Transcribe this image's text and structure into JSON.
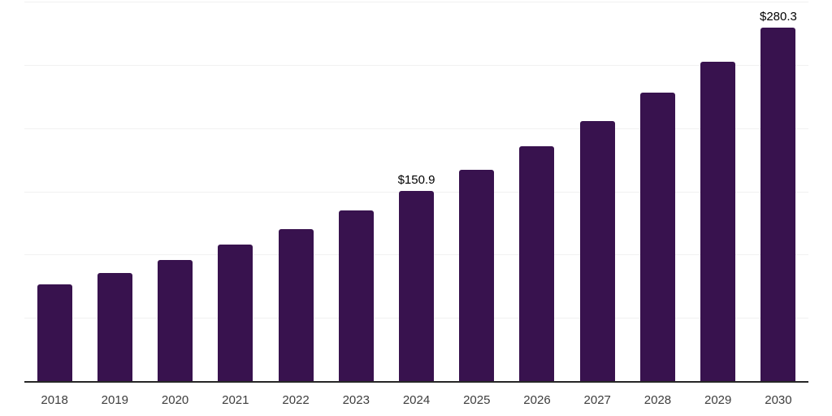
{
  "chart_data": {
    "type": "bar",
    "title": "",
    "xlabel": "",
    "ylabel": "",
    "categories": [
      "2018",
      "2019",
      "2020",
      "2021",
      "2022",
      "2023",
      "2024",
      "2025",
      "2026",
      "2027",
      "2028",
      "2029",
      "2030"
    ],
    "values": [
      77.0,
      86.0,
      96.6,
      108.3,
      121.0,
      135.3,
      150.9,
      167.9,
      186.0,
      206.0,
      228.5,
      253.1,
      280.3
    ],
    "data_labels": {
      "2024": "$150.9",
      "2030": "$280.3"
    },
    "ylim": [
      0,
      300
    ],
    "gridline_values": [
      50,
      100,
      150,
      200,
      250,
      300
    ],
    "grid": "horizontal",
    "legend_position": "none"
  },
  "colors": {
    "bar": "#38124E",
    "gridline": "#F1F1F1",
    "axis_line": "#262626",
    "tick_label": "#3D3D3D",
    "data_label": "#000000",
    "background": "#FFFFFF"
  }
}
